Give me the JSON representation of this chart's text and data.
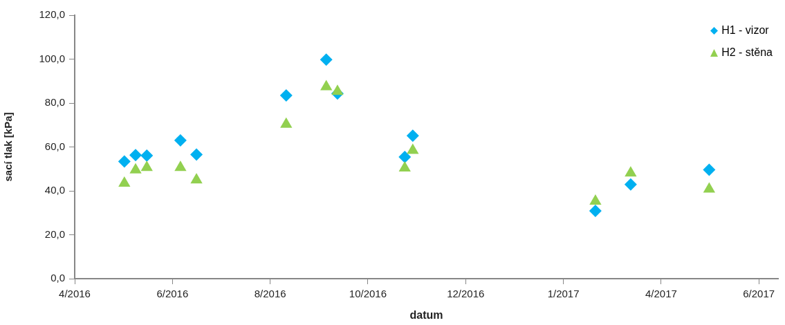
{
  "chart_data": {
    "type": "scatter",
    "xlabel": "datum",
    "ylabel": "sací tlak [kPa]",
    "xlim": [
      "2016-04-01",
      "2017-06-14"
    ],
    "xticks": [
      {
        "value": "2016-04-01",
        "label": "4/2016"
      },
      {
        "value": "2016-06-01",
        "label": "6/2016"
      },
      {
        "value": "2016-08-01",
        "label": "8/2016"
      },
      {
        "value": "2016-10-01",
        "label": "10/2016"
      },
      {
        "value": "2016-12-01",
        "label": "12/2016"
      },
      {
        "value": "2017-01-31",
        "label": "1/2017"
      },
      {
        "value": "2017-04-02",
        "label": "4/2017"
      },
      {
        "value": "2017-06-02",
        "label": "6/2017"
      }
    ],
    "ylim": [
      0,
      120
    ],
    "yticks": [
      {
        "value": 0,
        "label": "0,0"
      },
      {
        "value": 20,
        "label": "20,0"
      },
      {
        "value": 40,
        "label": "40,0"
      },
      {
        "value": 60,
        "label": "60,0"
      },
      {
        "value": 80,
        "label": "80,0"
      },
      {
        "value": 100,
        "label": "100,0"
      },
      {
        "value": 120,
        "label": "120,0"
      }
    ],
    "x": [
      "2016-05-02",
      "2016-05-09",
      "2016-05-16",
      "2016-06-06",
      "2016-06-16",
      "2016-08-11",
      "2016-09-05",
      "2016-09-12",
      "2016-10-24",
      "2016-10-29",
      "2017-02-20",
      "2017-03-14",
      "2017-05-02"
    ],
    "series": [
      {
        "name": "H1 - vizor",
        "color": "#00b0f0",
        "marker": "diamond",
        "values": [
          53.4,
          56.3,
          56.1,
          63.0,
          56.5,
          83.5,
          99.8,
          84.3,
          55.4,
          65.1,
          30.9,
          42.9,
          49.6
        ]
      },
      {
        "name": "H2 - stěna",
        "color": "#92d050",
        "marker": "triangle",
        "values": [
          43.5,
          49.5,
          50.6,
          50.6,
          45.0,
          70.3,
          87.4,
          85.3,
          50.4,
          58.4,
          35.3,
          48.1,
          40.8
        ]
      }
    ],
    "grid": false,
    "legend": "top right"
  }
}
